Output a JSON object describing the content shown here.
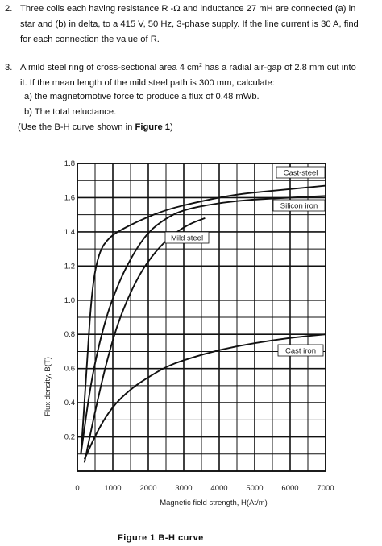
{
  "q2": {
    "number": "2.",
    "lines": [
      "Three coils each having resistance R -Ω and inductance 27 mH are connected (a) in",
      "star and (b) in delta, to a 415 V, 50 Hz, 3-phase supply. If the line current is 30 A, find",
      "for each connection the value of R."
    ]
  },
  "q3": {
    "number": "3.",
    "line1_pre": "A mild steel ring of cross-sectional area 4 cm",
    "line1_sup": "2",
    "line1_post": " has a radial air-gap of 2.8 mm cut into",
    "line2": "it. If the mean length of the mild steel path is 300 mm, calculate:",
    "part_a": "a) the magnetomotive force to produce a flux of 0.48 mWb.",
    "part_b": "b) The total reluctance.",
    "note_pre": "(Use the B-H curve shown in ",
    "note_bold": "Figure 1",
    "note_post": ")"
  },
  "figure_caption": "Figure 1     B-H curve",
  "chart_data": {
    "type": "line",
    "xlabel": "Magnetic field strength, H(At/m)",
    "ylabel": "Flux density, B(T)",
    "xlim": [
      0,
      7000
    ],
    "ylim": [
      0,
      1.8
    ],
    "x_ticks": [
      "0",
      "1000",
      "2000",
      "3000",
      "4000",
      "5000",
      "6000",
      "7000"
    ],
    "y_ticks": [
      "0.2",
      "0.4",
      "0.6",
      "0.8",
      "1.0",
      "1.2",
      "1.4",
      "1.6",
      "1.8"
    ],
    "grid": true,
    "series": [
      {
        "name": "Cast-steel",
        "x": [
          100,
          250,
          400,
          600,
          900,
          1300,
          1800,
          2500,
          3500,
          4500,
          5500,
          6500,
          7000
        ],
        "y": [
          0.1,
          0.55,
          1.05,
          1.28,
          1.37,
          1.42,
          1.47,
          1.53,
          1.58,
          1.62,
          1.64,
          1.66,
          1.67
        ]
      },
      {
        "name": "Silicon iron",
        "x": [
          100,
          400,
          800,
          1200,
          1600,
          2000,
          2500,
          3000,
          4000,
          5000,
          6000,
          7000
        ],
        "y": [
          0.1,
          0.55,
          0.9,
          1.12,
          1.28,
          1.4,
          1.48,
          1.53,
          1.57,
          1.59,
          1.6,
          1.61
        ]
      },
      {
        "name": "Mild steel",
        "x": [
          200,
          500,
          800,
          1100,
          1400,
          1700,
          2000,
          2400,
          2800,
          3200,
          3600
        ],
        "y": [
          0.05,
          0.35,
          0.62,
          0.84,
          1.0,
          1.13,
          1.23,
          1.33,
          1.4,
          1.45,
          1.48
        ]
      },
      {
        "name": "Cast iron",
        "x": [
          200,
          600,
          1000,
          1500,
          2000,
          2500,
          3000,
          4000,
          5000,
          6000,
          7000
        ],
        "y": [
          0.07,
          0.25,
          0.38,
          0.48,
          0.55,
          0.61,
          0.65,
          0.71,
          0.75,
          0.78,
          0.8
        ]
      }
    ]
  }
}
